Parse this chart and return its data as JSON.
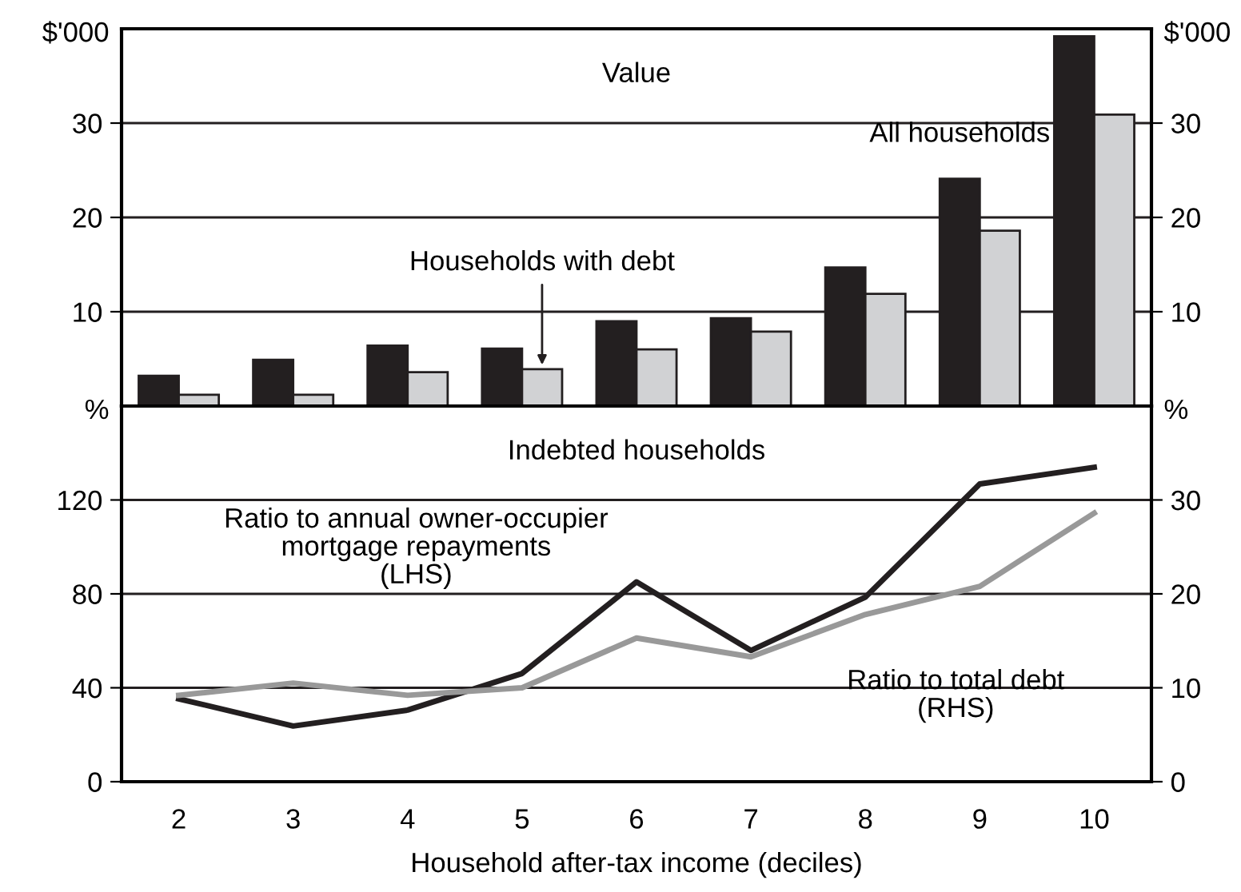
{
  "chart_data": [
    {
      "type": "bar",
      "title": "Value",
      "categories": [
        "2",
        "3",
        "4",
        "5",
        "6",
        "7",
        "8",
        "9",
        "10"
      ],
      "series": [
        {
          "name": "All households",
          "color": "#231f20",
          "values": [
            3.2,
            4.9,
            6.4,
            6.1,
            9.0,
            9.3,
            14.7,
            24.1,
            39.2
          ]
        },
        {
          "name": "Households with debt",
          "color": "#d1d2d4",
          "values": [
            1.2,
            1.2,
            3.6,
            3.9,
            6.0,
            7.9,
            11.9,
            18.6,
            30.9
          ]
        }
      ],
      "ylabel": "$'000",
      "y2label": "$'000",
      "ylim": [
        0,
        40
      ],
      "yticks": [
        10,
        20,
        30
      ],
      "y2lim": [
        0,
        40
      ],
      "y2ticks": [
        10,
        20,
        30
      ],
      "grid": "y",
      "legend": false,
      "tick_labels": "y"
    },
    {
      "type": "line",
      "title": "Indebted households",
      "xlabel": "Household after-tax income (deciles)",
      "categories": [
        "2",
        "3",
        "4",
        "5",
        "6",
        "7",
        "8",
        "9",
        "10"
      ],
      "series": [
        {
          "name": "Ratio to annual owner-occupier\nmortgage repayments\n(LHS)",
          "color": "#231f20",
          "values": [
            35.3,
            23.7,
            30.5,
            46.1,
            85.1,
            55.9,
            78.6,
            126.8,
            133.9
          ]
        },
        {
          "name": "Ratio to total debt\n(RHS)",
          "color": "#999999",
          "axis": "y2",
          "values": [
            9.2,
            10.5,
            9.2,
            10.0,
            15.3,
            13.3,
            17.8,
            20.8,
            28.6
          ]
        }
      ],
      "ylabel": "%",
      "y2label": "%",
      "ylim": [
        0,
        160
      ],
      "yticks": [
        0,
        40,
        80,
        120
      ],
      "y2lim": [
        0,
        40
      ],
      "y2ticks": [
        0,
        10,
        20,
        30
      ],
      "grid": "y",
      "legend": false,
      "marker": "none",
      "line_style": "solid"
    }
  ]
}
